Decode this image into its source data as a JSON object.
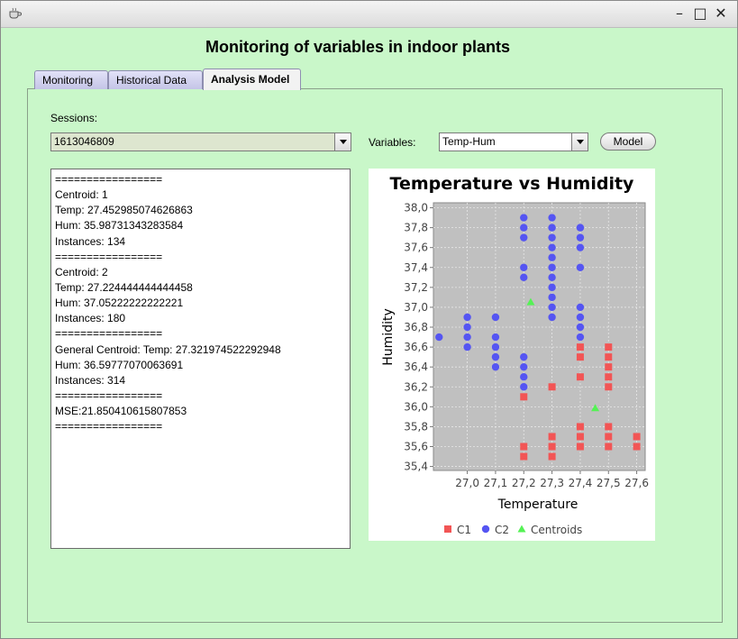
{
  "window": {
    "minimize_glyph": "–",
    "maximize_glyph": "□",
    "close_glyph": "✕",
    "app_icon": "coffee-cup-icon"
  },
  "app": {
    "title": "Monitoring of variables in indoor plants"
  },
  "tabs": [
    {
      "label": "Monitoring",
      "active": false
    },
    {
      "label": "Historical Data",
      "active": false
    },
    {
      "label": "Analysis Model",
      "active": true
    }
  ],
  "sessions": {
    "label": "Sessions:",
    "value": "1613046809"
  },
  "variables": {
    "label": "Variables:",
    "value": "Temp-Hum"
  },
  "model_button": {
    "label": "Model"
  },
  "results": {
    "lines": [
      "=================",
      "Centroid: 1",
      "Temp: 27.452985074626863",
      "Hum: 35.98731343283584",
      "Instances: 134",
      "=================",
      "Centroid: 2",
      "Temp: 27.224444444444458",
      "Hum: 37.05222222222221",
      "Instances: 180",
      "=================",
      "General Centroid: Temp: 27.321974522292948",
      "Hum: 36.59777070063691",
      "Instances: 314",
      "=================",
      "MSE:21.850410615807853",
      "================="
    ]
  },
  "colors": {
    "background": "#c9f7c9",
    "plot_background": "#c0c0c0",
    "c1": "#f25555",
    "c2": "#5555f2",
    "centroids": "#55f255"
  },
  "chart_data": {
    "type": "scatter",
    "title": "Temperature vs Humidity",
    "xlabel": "Temperature",
    "ylabel": "Humidity",
    "xlim": [
      26.88,
      27.63
    ],
    "ylim": [
      35.36,
      38.05
    ],
    "x_ticks": [
      "27,0",
      "27,1",
      "27,2",
      "27,3",
      "27,4",
      "27,5",
      "27,6"
    ],
    "y_ticks": [
      "35,4",
      "35,6",
      "35,8",
      "36,0",
      "36,2",
      "36,4",
      "36,6",
      "36,8",
      "37,0",
      "37,2",
      "37,4",
      "37,6",
      "37,8",
      "38,0"
    ],
    "grid": true,
    "legend_position": "bottom",
    "series": [
      {
        "name": "C1",
        "marker": "square",
        "color": "#f25555",
        "points": [
          [
            27.2,
            36.1
          ],
          [
            27.2,
            35.6
          ],
          [
            27.2,
            35.5
          ],
          [
            27.3,
            36.2
          ],
          [
            27.3,
            35.7
          ],
          [
            27.3,
            35.6
          ],
          [
            27.3,
            35.5
          ],
          [
            27.4,
            36.6
          ],
          [
            27.4,
            36.5
          ],
          [
            27.4,
            36.3
          ],
          [
            27.4,
            35.8
          ],
          [
            27.4,
            35.7
          ],
          [
            27.4,
            35.6
          ],
          [
            27.5,
            36.6
          ],
          [
            27.5,
            36.5
          ],
          [
            27.5,
            36.4
          ],
          [
            27.5,
            36.3
          ],
          [
            27.5,
            36.2
          ],
          [
            27.5,
            35.8
          ],
          [
            27.5,
            35.7
          ],
          [
            27.5,
            35.6
          ],
          [
            27.6,
            35.7
          ],
          [
            27.6,
            35.6
          ]
        ]
      },
      {
        "name": "C2",
        "marker": "circle",
        "color": "#5555f2",
        "points": [
          [
            26.9,
            36.7
          ],
          [
            27.0,
            36.9
          ],
          [
            27.0,
            36.8
          ],
          [
            27.0,
            36.7
          ],
          [
            27.0,
            36.6
          ],
          [
            27.1,
            36.9
          ],
          [
            27.1,
            36.7
          ],
          [
            27.1,
            36.6
          ],
          [
            27.1,
            36.5
          ],
          [
            27.1,
            36.4
          ],
          [
            27.2,
            37.9
          ],
          [
            27.2,
            37.8
          ],
          [
            27.2,
            37.7
          ],
          [
            27.2,
            37.4
          ],
          [
            27.2,
            37.3
          ],
          [
            27.2,
            36.5
          ],
          [
            27.2,
            36.4
          ],
          [
            27.2,
            36.3
          ],
          [
            27.2,
            36.2
          ],
          [
            27.3,
            37.9
          ],
          [
            27.3,
            37.8
          ],
          [
            27.3,
            37.7
          ],
          [
            27.3,
            37.6
          ],
          [
            27.3,
            37.5
          ],
          [
            27.3,
            37.4
          ],
          [
            27.3,
            37.3
          ],
          [
            27.3,
            37.2
          ],
          [
            27.3,
            37.1
          ],
          [
            27.3,
            37.0
          ],
          [
            27.3,
            36.9
          ],
          [
            27.4,
            37.8
          ],
          [
            27.4,
            37.7
          ],
          [
            27.4,
            37.6
          ],
          [
            27.4,
            37.4
          ],
          [
            27.4,
            37.0
          ],
          [
            27.4,
            36.9
          ],
          [
            27.4,
            36.8
          ],
          [
            27.4,
            36.7
          ]
        ]
      },
      {
        "name": "Centroids",
        "marker": "triangle",
        "color": "#55f255",
        "points": [
          [
            27.224444444444458,
            37.05222222222221
          ],
          [
            27.452985074626863,
            35.98731343283584
          ]
        ]
      }
    ]
  }
}
